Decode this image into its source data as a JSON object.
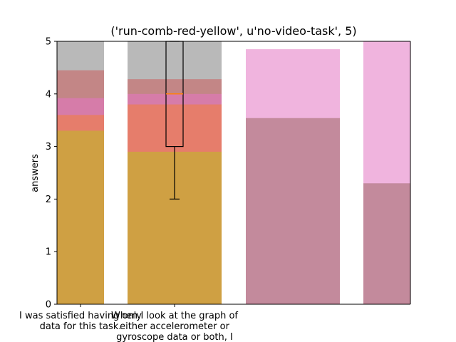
{
  "chart_data": {
    "type": "bar",
    "title": "('run-comb-red-yellow', u'no-video-task', 5)",
    "xlabel": "",
    "ylabel": "answers",
    "ylim": [
      0,
      5
    ],
    "yticks": [
      "0",
      "1",
      "2",
      "3",
      "4",
      "5"
    ],
    "grid": false,
    "categories": [
      "I was satisfied having only\ndata for this task.",
      "When I look at the graph of\neither accelerometer or\ngyroscope data or both, I"
    ],
    "bars": [
      {
        "slot": 0,
        "layers": [
          {
            "value": 5.0,
            "color": "#7f7f7f",
            "opacity": 0.55
          },
          {
            "value": 4.45,
            "color": "#d62728",
            "opacity": 0.35
          },
          {
            "value": 3.92,
            "color": "#e377c2",
            "opacity": 0.6
          },
          {
            "value": 3.6,
            "color": "#ff7f0e",
            "opacity": 0.4
          },
          {
            "value": 3.3,
            "color": "#bcbd22",
            "opacity": 0.55
          }
        ]
      },
      {
        "slot": 1,
        "layers": [
          {
            "value": 5.0,
            "color": "#7f7f7f",
            "opacity": 0.55
          },
          {
            "value": 4.28,
            "color": "#d62728",
            "opacity": 0.35
          },
          {
            "value": 4.0,
            "color": "#e377c2",
            "opacity": 0.6
          },
          {
            "value": 3.8,
            "color": "#ff7f0e",
            "opacity": 0.4
          },
          {
            "value": 2.9,
            "color": "#bcbd22",
            "opacity": 0.55
          }
        ]
      },
      {
        "slot": 2,
        "layers": [
          {
            "value": 4.85,
            "color": "#e377c2",
            "opacity": 0.55
          },
          {
            "value": 3.54,
            "color": "#8c564b",
            "opacity": 0.45
          }
        ]
      },
      {
        "slot": 3,
        "layers": [
          {
            "value": 5.0,
            "color": "#e377c2",
            "opacity": 0.55
          },
          {
            "value": 2.3,
            "color": "#8c564b",
            "opacity": 0.45
          }
        ]
      }
    ],
    "boxplot": {
      "slot": 1,
      "whisker_low": 2,
      "q1": 3,
      "median": 4,
      "q3": 5,
      "whisker_high": 5
    }
  }
}
